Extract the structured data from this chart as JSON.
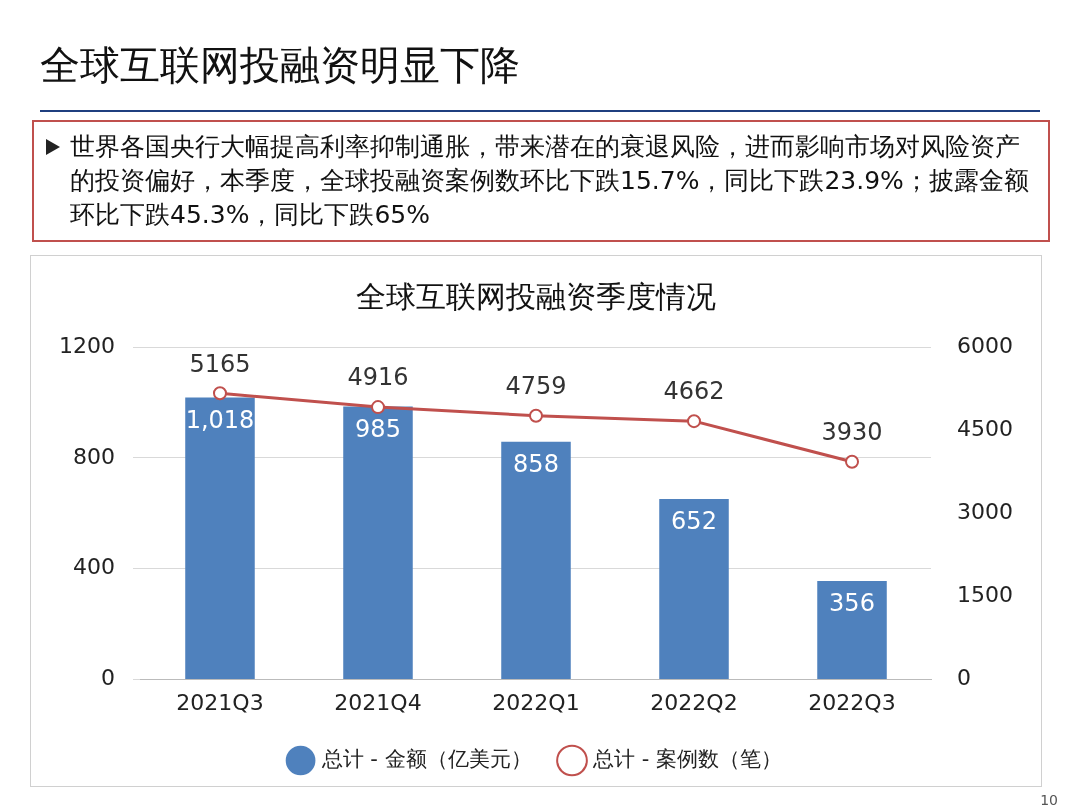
{
  "chart_data": {
    "type": "bar",
    "title": "全球互联网投融资明显下降",
    "subtitle": "全球互联网投融资季度情况",
    "annotations": [
      "世界各国央行大幅提高利率抑制通胀，带来潜在的衰退风险，进而影响市场对风险资产的投资偏好，本季度，全球投融资案例数环比下跌15.7%，同比下跌23.9%；披露金额环比下跌45.3%，同比下跌65%",
      "10"
    ],
    "categories": [
      "2021Q3",
      "2021Q4",
      "2022Q1",
      "2022Q2",
      "2022Q3"
    ],
    "series": [
      {
        "name": "总计 - 金额（亿美元）",
        "color": "#4f81bd",
        "values": [
          1018,
          985,
          858,
          652,
          356
        ],
        "value_labels": [
          "1,018",
          "985",
          "858",
          "652",
          "356"
        ]
      },
      {
        "name": "总计 - 案例数（笔）",
        "type": "line",
        "axis": "y2",
        "color": "#c0504d",
        "values": [
          5165,
          4916,
          4759,
          4662,
          3930
        ],
        "value_labels": [
          "5165",
          "4916",
          "4759",
          "4662",
          "3930"
        ]
      }
    ],
    "ylim": [
      0,
      1200
    ],
    "yticks": [
      0,
      400,
      800,
      1200
    ],
    "y2lim": [
      0,
      6000
    ],
    "y2ticks": [
      0,
      1500,
      3000,
      4500,
      6000
    ],
    "grid": "y",
    "legend": "bottom",
    "marker": "circle",
    "line_style": "solid"
  }
}
